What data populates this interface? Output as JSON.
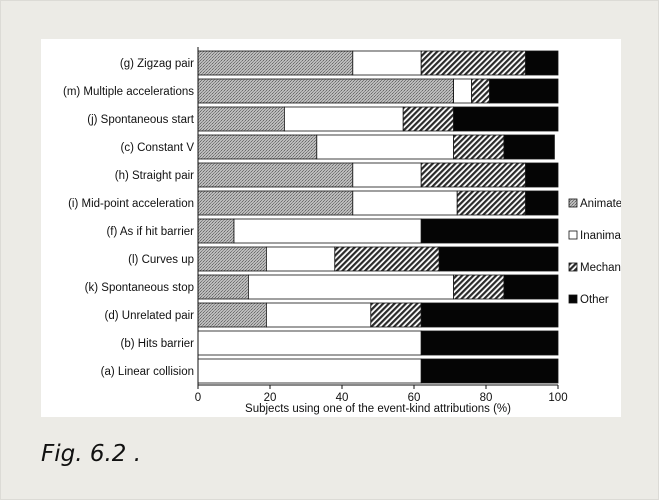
{
  "caption": "Fig. 6.2 .",
  "chart_data": {
    "type": "bar",
    "orientation": "horizontal",
    "stacked": true,
    "categories": [
      "(g) Zigzag pair",
      "(m) Multiple accelerations",
      "(j) Spontaneous start",
      "(c) Constant V",
      "(h) Straight pair",
      "(i) Mid-point acceleration",
      "(f) As if hit barrier",
      "(l) Curves up",
      "(k) Spontaneous stop",
      "(d) Unrelated pair",
      "(b) Hits barrier",
      "(a) Linear collision"
    ],
    "series": [
      {
        "name": "Animate",
        "pattern": "stipple",
        "values": [
          43,
          71,
          24,
          33,
          43,
          43,
          10,
          19,
          14,
          19,
          0,
          0
        ]
      },
      {
        "name": "Inanimate",
        "pattern": "white",
        "values": [
          19,
          5,
          33,
          38,
          19,
          29,
          52,
          19,
          57,
          29,
          62,
          62
        ]
      },
      {
        "name": "Mechanical",
        "pattern": "hatched",
        "values": [
          29,
          5,
          14,
          14,
          29,
          19,
          0,
          29,
          14,
          14,
          0,
          0
        ]
      },
      {
        "name": "Other",
        "pattern": "black",
        "values": [
          9,
          19,
          29,
          14,
          9,
          9,
          38,
          33,
          15,
          38,
          38,
          38
        ]
      }
    ],
    "xlabel": "Subjects using one of the event-kind attributions (%)",
    "ylabel": "",
    "xlim": [
      0,
      100
    ],
    "xticks": [
      "0",
      "20",
      "40",
      "60",
      "80",
      "100"
    ],
    "legend_position": "right",
    "grid": false,
    "colors": {
      "animate": "#b4b4b4",
      "inanimate": "#ffffff",
      "mechanical": "#555555",
      "other": "#050505"
    }
  }
}
